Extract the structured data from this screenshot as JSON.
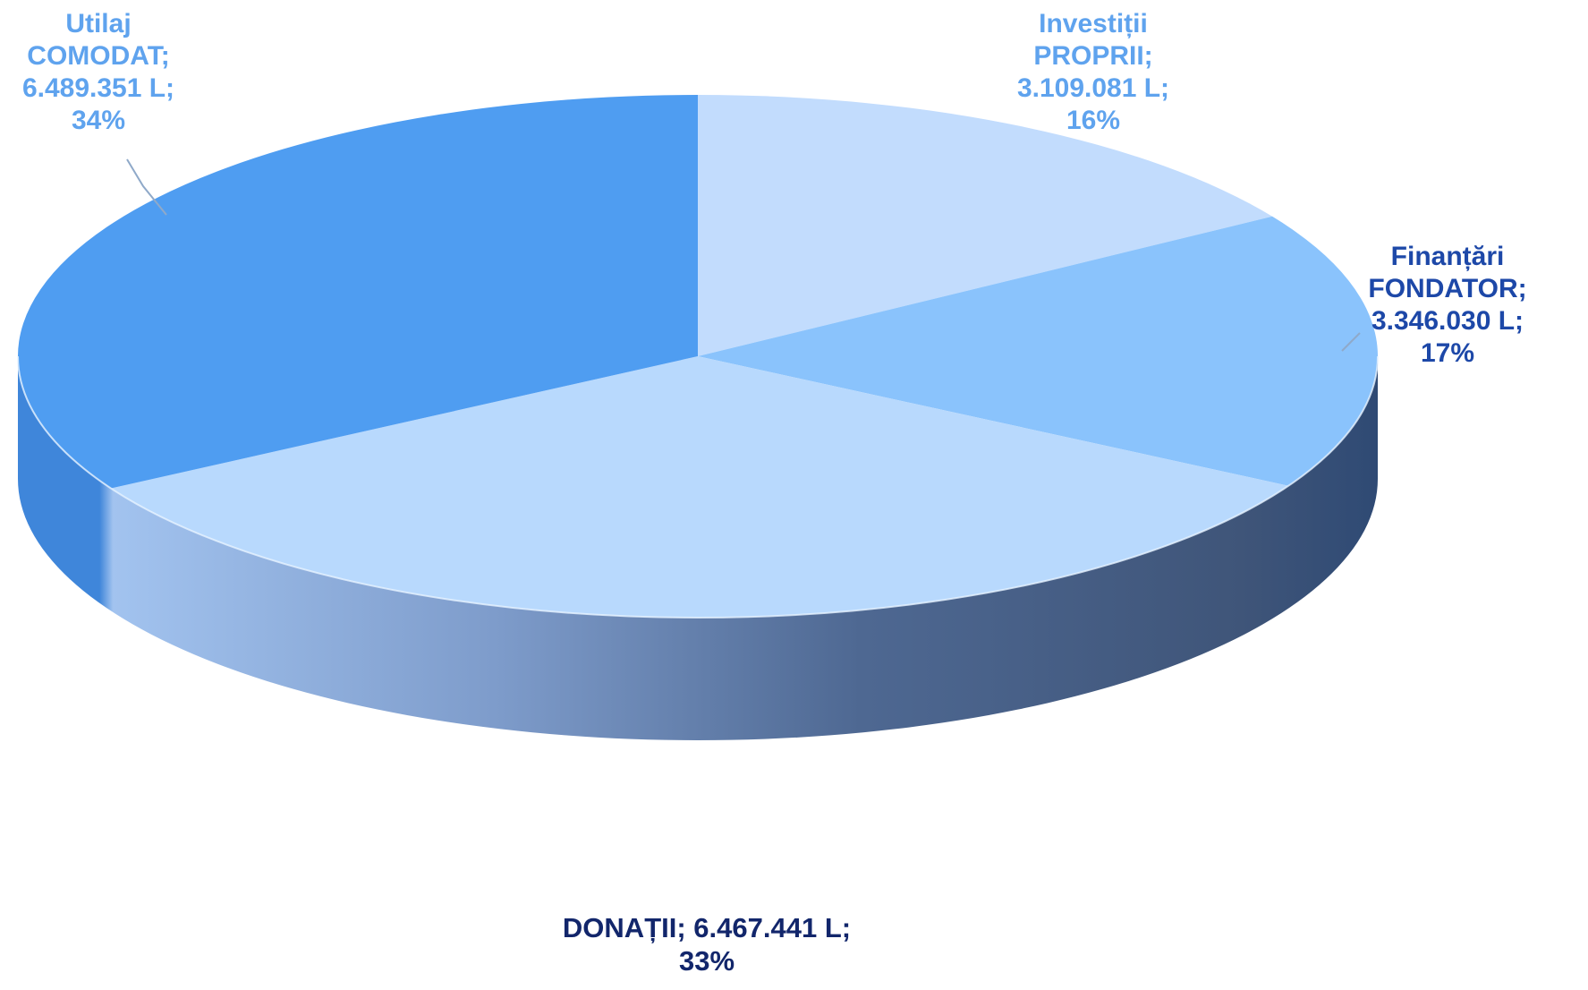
{
  "chart_data": {
    "type": "pie",
    "style": "3d",
    "unit": "L",
    "slices": [
      {
        "category_line1": "Investiții",
        "category_line2": "PROPRII;",
        "value": 3109081,
        "value_label": "3.109.081 L;",
        "percent": 16,
        "percent_label": "16%",
        "color": "#C2DCFD",
        "label_color": "#5FA3EE"
      },
      {
        "category_line1": "Finanțări",
        "category_line2": "FONDATOR;",
        "value": 3346030,
        "value_label": "3.346.030 L;",
        "percent": 17,
        "percent_label": "17%",
        "color": "#8AC3FC",
        "label_color": "#1D48A8"
      },
      {
        "category_line1": "DONAȚII;",
        "category_line2": "",
        "value": 6467441,
        "value_label": "6.467.441 L;",
        "percent": 33,
        "percent_label": "33%",
        "color": "#B8D9FD",
        "label_color": "#12266B"
      },
      {
        "category_line1": "Utilaj",
        "category_line2": "COMODAT;",
        "value": 6489351,
        "value_label": "6.489.351 L;",
        "percent": 34,
        "percent_label": "34%",
        "color": "#4F9DF1",
        "label_color": "#5FA3EE"
      }
    ]
  }
}
